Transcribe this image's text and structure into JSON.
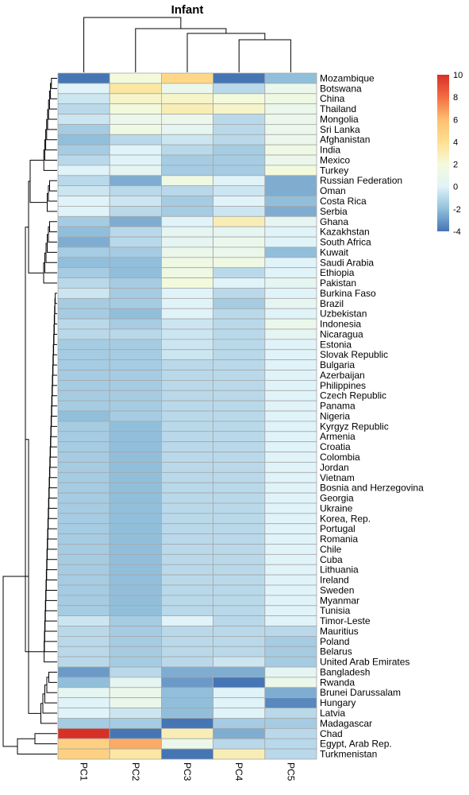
{
  "chart_data": {
    "type": "heatmap",
    "title": "Infant",
    "columns": [
      "PC1",
      "PC2",
      "PC3",
      "PC4",
      "PC5"
    ],
    "rows": [
      {
        "name": "Mozambique",
        "values": [
          -4,
          2,
          4.5,
          -4,
          -2
        ]
      },
      {
        "name": "Botswana",
        "values": [
          0,
          3.5,
          1,
          -1,
          1
        ]
      },
      {
        "name": "China",
        "values": [
          -0.5,
          2.5,
          2.5,
          2,
          1.5
        ]
      },
      {
        "name": "Thailand",
        "values": [
          -1,
          2,
          3,
          2.5,
          1
        ]
      },
      {
        "name": "Mongolia",
        "values": [
          -0.5,
          1,
          1,
          -1,
          1
        ]
      },
      {
        "name": "Sri Lanka",
        "values": [
          -1.5,
          1.5,
          0.5,
          -1,
          1
        ]
      },
      {
        "name": "Afghanistan",
        "values": [
          -2,
          -1,
          -0.5,
          -1,
          1
        ]
      },
      {
        "name": "India",
        "values": [
          -1.5,
          0,
          -1,
          -1.5,
          1.5
        ]
      },
      {
        "name": "Mexico",
        "values": [
          -1,
          0,
          -1.5,
          -1.5,
          1
        ]
      },
      {
        "name": "Turkey",
        "values": [
          0,
          0.5,
          -1.5,
          -1.5,
          2
        ]
      },
      {
        "name": "Russian Federation",
        "values": [
          -1,
          -2.5,
          1.5,
          0,
          -2.5
        ]
      },
      {
        "name": "Oman",
        "values": [
          -0.5,
          -1,
          -1,
          -0.5,
          -2.5
        ]
      },
      {
        "name": "Costa Rica",
        "values": [
          0,
          -0.5,
          -1.5,
          0,
          -2
        ]
      },
      {
        "name": "Serbia",
        "values": [
          0,
          -1,
          -1.5,
          -0.5,
          -2.5
        ]
      },
      {
        "name": "Ghana",
        "values": [
          -1.5,
          -2.5,
          0,
          3,
          0.5
        ]
      },
      {
        "name": "Kazakhstan",
        "values": [
          -2,
          -1,
          0.5,
          0.5,
          0
        ]
      },
      {
        "name": "South Africa",
        "values": [
          -2.5,
          -1,
          0.5,
          1,
          0
        ]
      },
      {
        "name": "Kuwait",
        "values": [
          -1.5,
          -1.5,
          1,
          1,
          -2
        ]
      },
      {
        "name": "Saudi Arabia",
        "values": [
          -2,
          -2,
          1.5,
          1.5,
          0
        ]
      },
      {
        "name": "Ethiopia",
        "values": [
          -1.5,
          -2,
          1.5,
          -1,
          0
        ]
      },
      {
        "name": "Pakistan",
        "values": [
          -1,
          -1.5,
          2,
          0,
          0.5
        ]
      },
      {
        "name": "Burkina Faso",
        "values": [
          -0.5,
          -1.5,
          0,
          -1,
          0
        ]
      },
      {
        "name": "Brazil",
        "values": [
          -1.5,
          -1.5,
          0,
          -1.5,
          0.5
        ]
      },
      {
        "name": "Uzbekistan",
        "values": [
          -1.5,
          -2,
          0,
          -1,
          0
        ]
      },
      {
        "name": "Indonesia",
        "values": [
          -1,
          -1.5,
          -0.5,
          -1,
          1
        ]
      },
      {
        "name": "Nicaragua",
        "values": [
          -1,
          -1,
          -0.5,
          -1,
          0.5
        ]
      },
      {
        "name": "Estonia",
        "values": [
          -1.5,
          -1.5,
          -0.5,
          -1,
          0
        ]
      },
      {
        "name": "Slovak Republic",
        "values": [
          -1.5,
          -1.5,
          -0.5,
          -1,
          0
        ]
      },
      {
        "name": "Bulgaria",
        "values": [
          -1.5,
          -1.5,
          -1,
          -1,
          0
        ]
      },
      {
        "name": "Azerbaijan",
        "values": [
          -1.5,
          -1.5,
          -1,
          -1,
          0
        ]
      },
      {
        "name": "Philippines",
        "values": [
          -1.5,
          -1.5,
          -1,
          -1,
          0
        ]
      },
      {
        "name": "Czech Republic",
        "values": [
          -1.5,
          -1.5,
          -1,
          -1,
          0
        ]
      },
      {
        "name": "Panama",
        "values": [
          -1.5,
          -1.5,
          -1,
          -1,
          0
        ]
      },
      {
        "name": "Nigeria",
        "values": [
          -2,
          -1.5,
          -1,
          -1,
          0
        ]
      },
      {
        "name": "Kyrgyz Republic",
        "values": [
          -1.5,
          -2,
          -1,
          -1,
          0
        ]
      },
      {
        "name": "Armenia",
        "values": [
          -1.5,
          -2,
          -1,
          -1,
          0
        ]
      },
      {
        "name": "Croatia",
        "values": [
          -1.5,
          -2,
          -1,
          -1,
          0
        ]
      },
      {
        "name": "Colombia",
        "values": [
          -1.5,
          -2,
          -1,
          -1,
          0
        ]
      },
      {
        "name": "Jordan",
        "values": [
          -1.5,
          -2,
          -1,
          -1,
          0
        ]
      },
      {
        "name": "Vietnam",
        "values": [
          -1.5,
          -2,
          -1,
          -1,
          0
        ]
      },
      {
        "name": "Bosnia and Herzegovina",
        "values": [
          -1.5,
          -2,
          -1,
          -1,
          0
        ]
      },
      {
        "name": "Georgia",
        "values": [
          -1.5,
          -2,
          -1,
          -1,
          0
        ]
      },
      {
        "name": "Ukraine",
        "values": [
          -1.5,
          -2,
          -1,
          -1,
          0
        ]
      },
      {
        "name": "Korea, Rep.",
        "values": [
          -1.5,
          -2,
          -1,
          -1,
          0
        ]
      },
      {
        "name": "Portugal",
        "values": [
          -1.5,
          -2,
          -1,
          -1,
          0
        ]
      },
      {
        "name": "Romania",
        "values": [
          -1.5,
          -2,
          -1,
          -1,
          0
        ]
      },
      {
        "name": "Chile",
        "values": [
          -1.5,
          -2,
          -1,
          -1,
          0
        ]
      },
      {
        "name": "Cuba",
        "values": [
          -1.5,
          -2,
          -1,
          -1,
          0
        ]
      },
      {
        "name": "Lithuania",
        "values": [
          -1.5,
          -2,
          -1,
          -1,
          0
        ]
      },
      {
        "name": "Ireland",
        "values": [
          -1.5,
          -2,
          -1,
          -1,
          0
        ]
      },
      {
        "name": "Sweden",
        "values": [
          -1.5,
          -2,
          -1,
          -1,
          0
        ]
      },
      {
        "name": "Myanmar",
        "values": [
          -1.5,
          -2,
          -1,
          -1,
          0
        ]
      },
      {
        "name": "Tunisia",
        "values": [
          -1.5,
          -2,
          -1,
          -1,
          0
        ]
      },
      {
        "name": "Timor-Leste",
        "values": [
          -0.5,
          -1.5,
          0,
          -1,
          0
        ]
      },
      {
        "name": "Mauritius",
        "values": [
          -1,
          -1.5,
          -1,
          -1,
          -1
        ]
      },
      {
        "name": "Poland",
        "values": [
          -1,
          -1.5,
          -1,
          -1,
          -1.5
        ]
      },
      {
        "name": "Belarus",
        "values": [
          -1,
          -1.5,
          -1,
          -1,
          -1.5
        ]
      },
      {
        "name": "United Arab Emirates",
        "values": [
          -1,
          -1.5,
          -1,
          -0.5,
          -1.5
        ]
      },
      {
        "name": "Bangladesh",
        "values": [
          -3,
          -1,
          -2.5,
          -2.5,
          0.5
        ]
      },
      {
        "name": "Rwanda",
        "values": [
          -2,
          0.5,
          -3,
          -4,
          1
        ]
      },
      {
        "name": "Brunei Darussalam",
        "values": [
          0.5,
          1,
          -2,
          0,
          -2.5
        ]
      },
      {
        "name": "Hungary",
        "values": [
          0,
          1,
          -2,
          0,
          -3.5
        ]
      },
      {
        "name": "Latvia",
        "values": [
          0,
          -0.5,
          -2,
          0,
          -1
        ]
      },
      {
        "name": "Madagascar",
        "values": [
          -1.5,
          -1.5,
          -4,
          -1.5,
          -1.5
        ]
      },
      {
        "name": "Chad",
        "values": [
          10,
          -4,
          3,
          -2.5,
          -1
        ]
      },
      {
        "name": "Egypt, Arab Rep.",
        "values": [
          5,
          6.5,
          1,
          -1,
          -1
        ]
      },
      {
        "name": "Turkmenistan",
        "values": [
          5,
          3.5,
          -4,
          3,
          -1
        ]
      }
    ],
    "color_scale": {
      "min": -4,
      "max": 10,
      "ticks": [
        10,
        8,
        6,
        4,
        2,
        0,
        -2,
        -4
      ],
      "stops": [
        {
          "value": -4,
          "color": "#4575b4"
        },
        {
          "value": -2,
          "color": "#91bfdb"
        },
        {
          "value": 0,
          "color": "#e0f3f8"
        },
        {
          "value": 2,
          "color": "#f3fadc"
        },
        {
          "value": 4,
          "color": "#fee090"
        },
        {
          "value": 6,
          "color": "#fdbf71"
        },
        {
          "value": 8,
          "color": "#f46d43"
        },
        {
          "value": 10,
          "color": "#d73027"
        }
      ]
    },
    "legend": "right"
  }
}
